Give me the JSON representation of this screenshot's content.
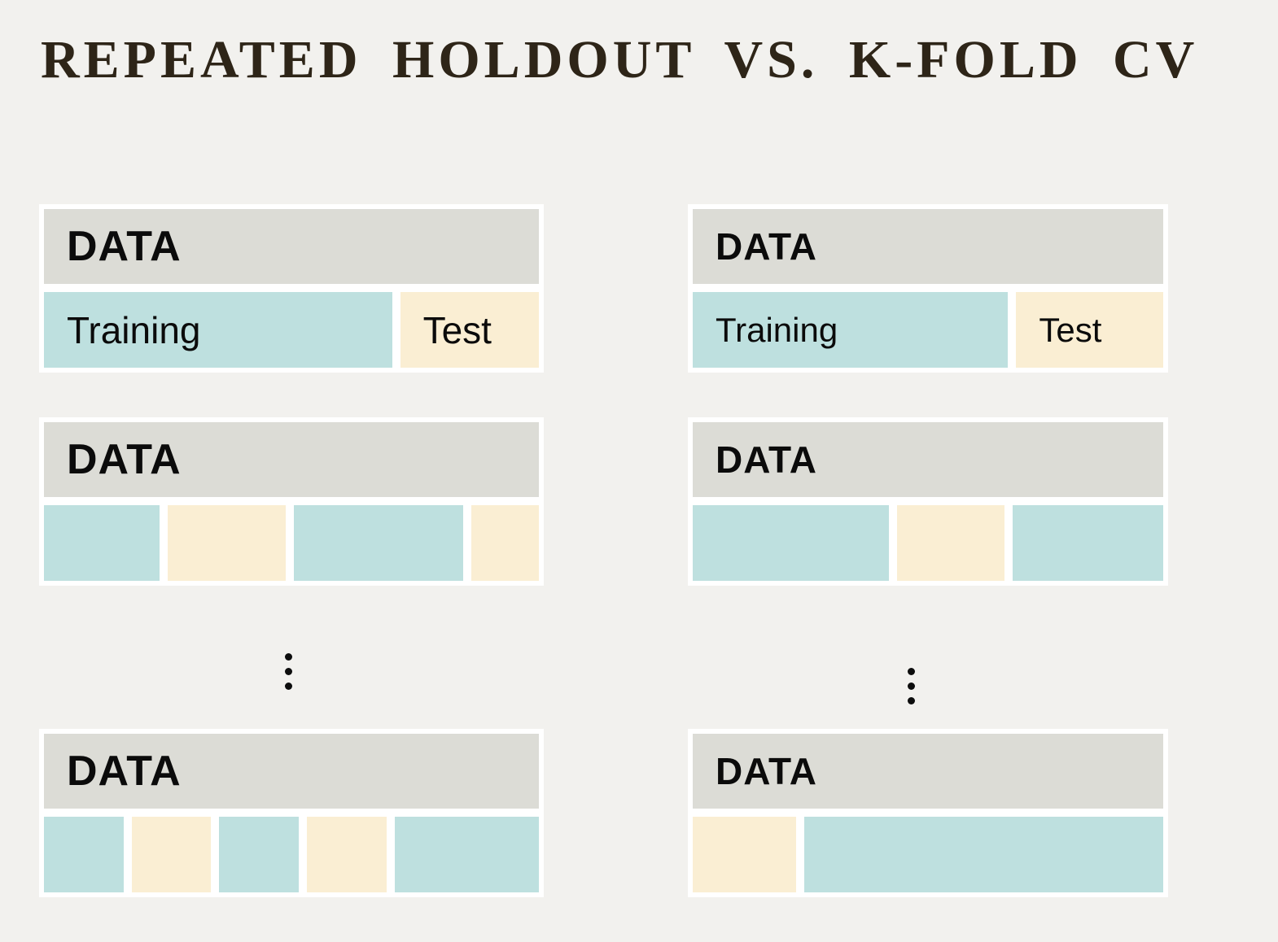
{
  "title": {
    "text": "REPEATED HOLDOUT VS. K-FOLD CV",
    "color": "#2e2518"
  },
  "colors": {
    "background": "#f2f1ee",
    "card_frame": "#ffffff",
    "header_bg": "#dcdcd6",
    "training_fill": "#bee0df",
    "test_fill": "#faeed3",
    "title_text": "#2e2518",
    "label_text": "#0b0b0b",
    "dot": "#0d0d0d"
  },
  "icons": {
    "between_rows": "vertical-ellipsis",
    "glyph": "⋮"
  },
  "columns": [
    {
      "id": "repeated-holdout",
      "cards": [
        {
          "header_label": "DATA",
          "segments": [
            {
              "kind": "training",
              "label": "Training",
              "width_pct": 71.5
            },
            {
              "kind": "test",
              "label": "Test",
              "width_pct": 28.5
            }
          ]
        },
        {
          "header_label": "DATA",
          "segments": [
            {
              "kind": "training",
              "width_pct": 24.6
            },
            {
              "kind": "test",
              "width_pct": 25.0
            },
            {
              "kind": "training",
              "width_pct": 36.0
            },
            {
              "kind": "test",
              "width_pct": 14.4
            }
          ]
        },
        {
          "header_label": "DATA",
          "segments": [
            {
              "kind": "training",
              "width_pct": 17.2
            },
            {
              "kind": "test",
              "width_pct": 17.2
            },
            {
              "kind": "training",
              "width_pct": 17.2
            },
            {
              "kind": "test",
              "width_pct": 17.3
            },
            {
              "kind": "training",
              "width_pct": 31.1
            }
          ]
        }
      ]
    },
    {
      "id": "k-fold-cv",
      "cards": [
        {
          "header_label": "DATA",
          "segments": [
            {
              "kind": "training",
              "label": "Training",
              "width_pct": 68.2
            },
            {
              "kind": "test",
              "label": "Test",
              "width_pct": 31.8
            }
          ]
        },
        {
          "header_label": "DATA",
          "segments": [
            {
              "kind": "training",
              "width_pct": 43.1
            },
            {
              "kind": "test",
              "width_pct": 23.8
            },
            {
              "kind": "training",
              "width_pct": 33.1
            }
          ]
        },
        {
          "header_label": "DATA",
          "segments": [
            {
              "kind": "test",
              "width_pct": 22.3
            },
            {
              "kind": "training",
              "width_pct": 77.7
            }
          ]
        }
      ]
    }
  ]
}
